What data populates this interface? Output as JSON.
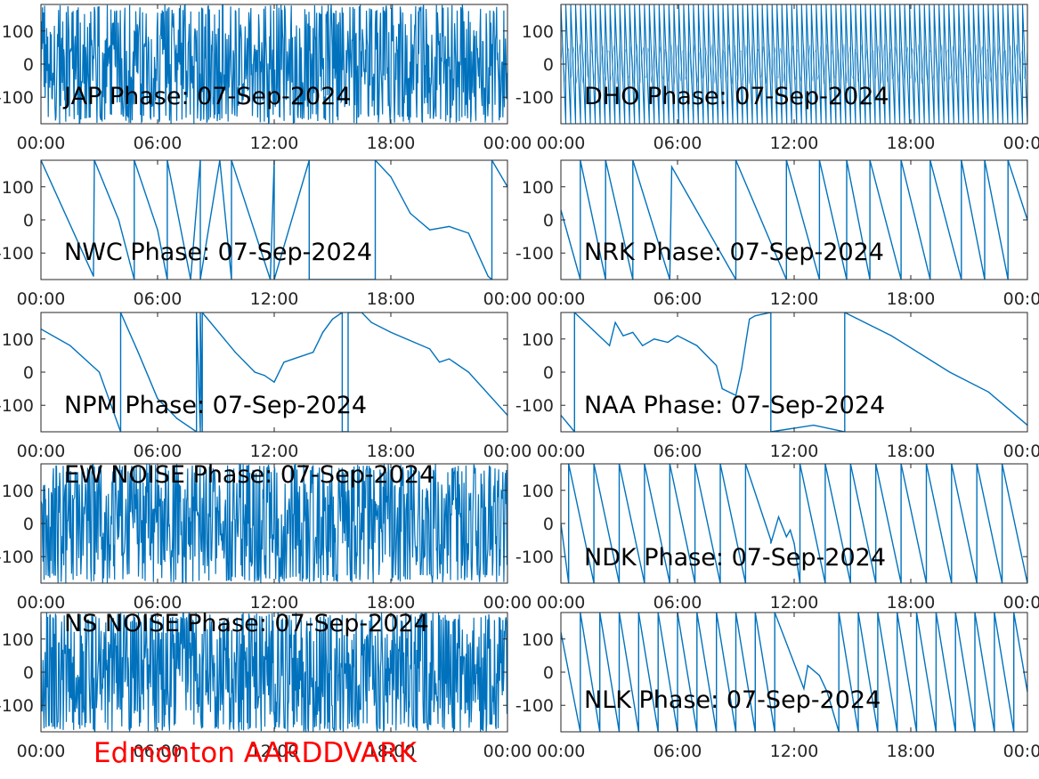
{
  "figure": {
    "station_label": "Edmonton AARDDVARK",
    "station_color": "#ff0000",
    "line_color": "#0072bd",
    "x_ticks": [
      "00:00",
      "06:00",
      "12:00",
      "18:00",
      "00:00"
    ],
    "y_ticks": [
      "100",
      "0",
      "-100"
    ]
  },
  "chart_data": [
    {
      "type": "line",
      "title": "JAP Phase: 07-Sep-2024",
      "signal": "noise",
      "xlim": [
        "00:00",
        "24:00"
      ],
      "ylim": [
        -180,
        180
      ],
      "xticks": [
        "00:00",
        "06:00",
        "12:00",
        "18:00",
        "00:00"
      ],
      "yticks": [
        100,
        0,
        -100
      ],
      "grid": false
    },
    {
      "type": "line",
      "title": "DHO Phase: 07-Sep-2024",
      "signal": "dense-sawtooth",
      "wrap_count": 95,
      "xlim": [
        "00:00",
        "24:00"
      ],
      "ylim": [
        -180,
        180
      ],
      "xticks": [
        "00:00",
        "06:00",
        "12:00",
        "18:00",
        "00:00"
      ],
      "yticks": [
        100,
        0,
        -100
      ],
      "grid": false
    },
    {
      "type": "line",
      "title": "NWC Phase: 07-Sep-2024",
      "signal": "sawtooth",
      "xlim": [
        "00:00",
        "24:00"
      ],
      "ylim": [
        -180,
        180
      ],
      "xticks": [
        "00:00",
        "06:00",
        "12:00",
        "18:00",
        "00:00"
      ],
      "yticks": [
        100,
        0,
        -100
      ],
      "grid": false,
      "series": [
        {
          "x": [
            0.0,
            2.7,
            2.7,
            2.75,
            4.0,
            4.8,
            4.8,
            6.0,
            6.5,
            6.5,
            7.7,
            8.2,
            8.2,
            9.2,
            9.8,
            9.8,
            11.8,
            12.0,
            12.0,
            13.8,
            13.8,
            17.2,
            17.2,
            18.0,
            19.0,
            20.0,
            21.0,
            22.0,
            23.0,
            23.2,
            23.2,
            24.0
          ],
          "y": [
            180,
            -170,
            -150,
            180,
            0,
            -180,
            180,
            -30,
            -180,
            180,
            -180,
            180,
            -180,
            180,
            -180,
            180,
            -180,
            180,
            -180,
            180,
            -180,
            -180,
            180,
            130,
            20,
            -30,
            -20,
            -40,
            -170,
            -180,
            180,
            100
          ]
        }
      ]
    },
    {
      "type": "line",
      "title": "NRK Phase: 07-Sep-2024",
      "signal": "sawtooth",
      "xlim": [
        "00:00",
        "24:00"
      ],
      "ylim": [
        -180,
        180
      ],
      "xticks": [
        "00:00",
        "06:00",
        "12:00",
        "18:00",
        "00:00"
      ],
      "yticks": [
        100,
        0,
        -100
      ],
      "grid": false,
      "series": [
        {
          "x": [
            0.0,
            1.0,
            1.0,
            2.3,
            2.3,
            3.7,
            3.7,
            5.6,
            5.7,
            5.7,
            9.0,
            9.0,
            11.6,
            11.6,
            13.3,
            13.3,
            14.7,
            14.7,
            15.9,
            15.9,
            17.5,
            17.5,
            19.0,
            19.0,
            20.6,
            20.6,
            21.8,
            21.8,
            23.0,
            23.0,
            24.0
          ],
          "y": [
            30,
            -180,
            180,
            -180,
            180,
            -180,
            180,
            -180,
            160,
            160,
            -180,
            180,
            -180,
            180,
            -180,
            180,
            -180,
            180,
            -180,
            180,
            -180,
            180,
            -180,
            180,
            -180,
            180,
            -180,
            180,
            -180,
            180,
            0
          ]
        }
      ]
    },
    {
      "type": "line",
      "title": "NPM Phase: 07-Sep-2024",
      "signal": "sawtooth",
      "xlim": [
        "00:00",
        "24:00"
      ],
      "ylim": [
        -180,
        180
      ],
      "xticks": [
        "00:00",
        "06:00",
        "12:00",
        "18:00",
        "00:00"
      ],
      "yticks": [
        100,
        0,
        -100
      ],
      "grid": false,
      "series": [
        {
          "x": [
            0.0,
            1.5,
            3.0,
            4.1,
            4.1,
            5.0,
            6.0,
            7.0,
            8.0,
            8.0,
            8.2,
            8.2,
            8.3,
            8.3,
            10.0,
            11.0,
            11.5,
            12.0,
            12.5,
            13.0,
            14.0,
            14.5,
            15.0,
            15.5,
            15.5,
            15.8,
            15.8,
            16.5,
            16.5,
            17.0,
            18.0,
            20.0,
            20.5,
            21.0,
            22.0,
            24.0
          ],
          "y": [
            130,
            80,
            0,
            -180,
            180,
            60,
            -80,
            -140,
            -180,
            180,
            -180,
            180,
            -180,
            180,
            60,
            0,
            -10,
            -30,
            30,
            40,
            60,
            120,
            160,
            180,
            -180,
            -180,
            180,
            180,
            180,
            150,
            120,
            70,
            30,
            40,
            0,
            -130
          ]
        }
      ]
    },
    {
      "type": "line",
      "title": "NAA Phase: 07-Sep-2024",
      "signal": "sawtooth",
      "xlim": [
        "00:00",
        "24:00"
      ],
      "ylim": [
        -180,
        180
      ],
      "xticks": [
        "00:00",
        "06:00",
        "12:00",
        "18:00",
        "00:00"
      ],
      "yticks": [
        100,
        0,
        -100
      ],
      "grid": false,
      "series": [
        {
          "x": [
            0.0,
            0.7,
            0.7,
            2.5,
            2.8,
            3.2,
            3.7,
            4.2,
            4.8,
            5.5,
            6.0,
            7.0,
            8.0,
            8.3,
            9.0,
            9.3,
            9.7,
            10.0,
            10.8,
            10.8,
            13.0,
            14.6,
            14.6,
            17.0,
            20.0,
            22.0,
            24.0
          ],
          "y": [
            -130,
            -180,
            180,
            80,
            150,
            110,
            120,
            80,
            100,
            90,
            110,
            80,
            20,
            -50,
            -70,
            10,
            160,
            170,
            180,
            -180,
            -160,
            -180,
            180,
            110,
            0,
            -60,
            -160
          ]
        }
      ]
    },
    {
      "type": "line",
      "title": "EW NOISE Phase: 07-Sep-2024",
      "signal": "noise",
      "xlim": [
        "00:00",
        "24:00"
      ],
      "ylim": [
        -180,
        180
      ],
      "xticks": [
        "00:00",
        "06:00",
        "12:00",
        "18:00",
        "00:00"
      ],
      "yticks": [
        100,
        0,
        -100
      ],
      "grid": false
    },
    {
      "type": "line",
      "title": "NDK Phase: 07-Sep-2024",
      "signal": "sawtooth",
      "xlim": [
        "00:00",
        "24:00"
      ],
      "ylim": [
        -180,
        180
      ],
      "xticks": [
        "00:00",
        "06:00",
        "12:00",
        "18:00",
        "00:00"
      ],
      "yticks": [
        100,
        0,
        -100
      ],
      "grid": false,
      "series": [
        {
          "x": [
            0.0,
            0.4,
            0.4,
            1.7,
            1.7,
            3.0,
            3.0,
            4.3,
            4.3,
            5.6,
            5.6,
            6.9,
            6.9,
            8.2,
            8.2,
            9.5,
            9.5,
            10.8,
            10.8,
            11.2,
            11.6,
            11.8,
            12.0,
            12.3,
            12.3,
            13.6,
            13.6,
            14.9,
            14.9,
            16.2,
            16.2,
            17.5,
            17.5,
            18.8,
            18.8,
            20.1,
            20.1,
            21.4,
            21.4,
            22.7,
            22.7,
            24.0
          ],
          "y": [
            0,
            -180,
            180,
            -180,
            180,
            -180,
            180,
            -180,
            180,
            -180,
            180,
            -180,
            180,
            -180,
            180,
            -180,
            180,
            -50,
            -60,
            20,
            -40,
            -20,
            -60,
            -180,
            180,
            -180,
            180,
            -180,
            180,
            -180,
            180,
            -180,
            180,
            -180,
            180,
            -180,
            180,
            -180,
            180,
            -180,
            180,
            -180
          ]
        }
      ]
    },
    {
      "type": "line",
      "title": "NS NOISE Phase: 07-Sep-2024",
      "signal": "noise",
      "xlim": [
        "00:00",
        "24:00"
      ],
      "ylim": [
        -180,
        180
      ],
      "xticks": [
        "00:00",
        "06:00",
        "12:00",
        "18:00",
        "00:00"
      ],
      "yticks": [
        100,
        0,
        -100
      ],
      "grid": false
    },
    {
      "type": "line",
      "title": "NLK Phase: 07-Sep-2024",
      "signal": "sawtooth",
      "xlim": [
        "00:00",
        "24:00"
      ],
      "ylim": [
        -180,
        180
      ],
      "xticks": [
        "00:00",
        "06:00",
        "12:00",
        "18:00",
        "00:00"
      ],
      "yticks": [
        100,
        0,
        -100
      ],
      "grid": false,
      "series": [
        {
          "x": [
            0.0,
            1.0,
            1.0,
            2.0,
            2.0,
            3.0,
            3.0,
            4.0,
            4.0,
            5.0,
            5.0,
            6.0,
            6.0,
            7.0,
            7.0,
            8.0,
            8.0,
            9.0,
            9.0,
            10.0,
            10.0,
            11.0,
            11.0,
            12.5,
            12.7,
            13.3,
            13.7,
            14.3,
            14.3,
            15.3,
            15.3,
            16.3,
            16.3,
            17.3,
            17.3,
            18.3,
            18.3,
            19.3,
            19.3,
            20.3,
            20.3,
            21.3,
            21.3,
            22.3,
            22.3,
            23.3,
            23.3,
            24.0
          ],
          "y": [
            120,
            -180,
            180,
            -180,
            180,
            -180,
            180,
            -180,
            180,
            -180,
            180,
            -180,
            180,
            -180,
            180,
            -180,
            180,
            -180,
            180,
            -180,
            180,
            -180,
            180,
            -50,
            20,
            -10,
            -60,
            -180,
            180,
            -180,
            180,
            -180,
            180,
            -180,
            180,
            -180,
            180,
            -180,
            180,
            -180,
            180,
            -180,
            180,
            -180,
            180,
            -180,
            180,
            -60
          ]
        }
      ]
    }
  ]
}
